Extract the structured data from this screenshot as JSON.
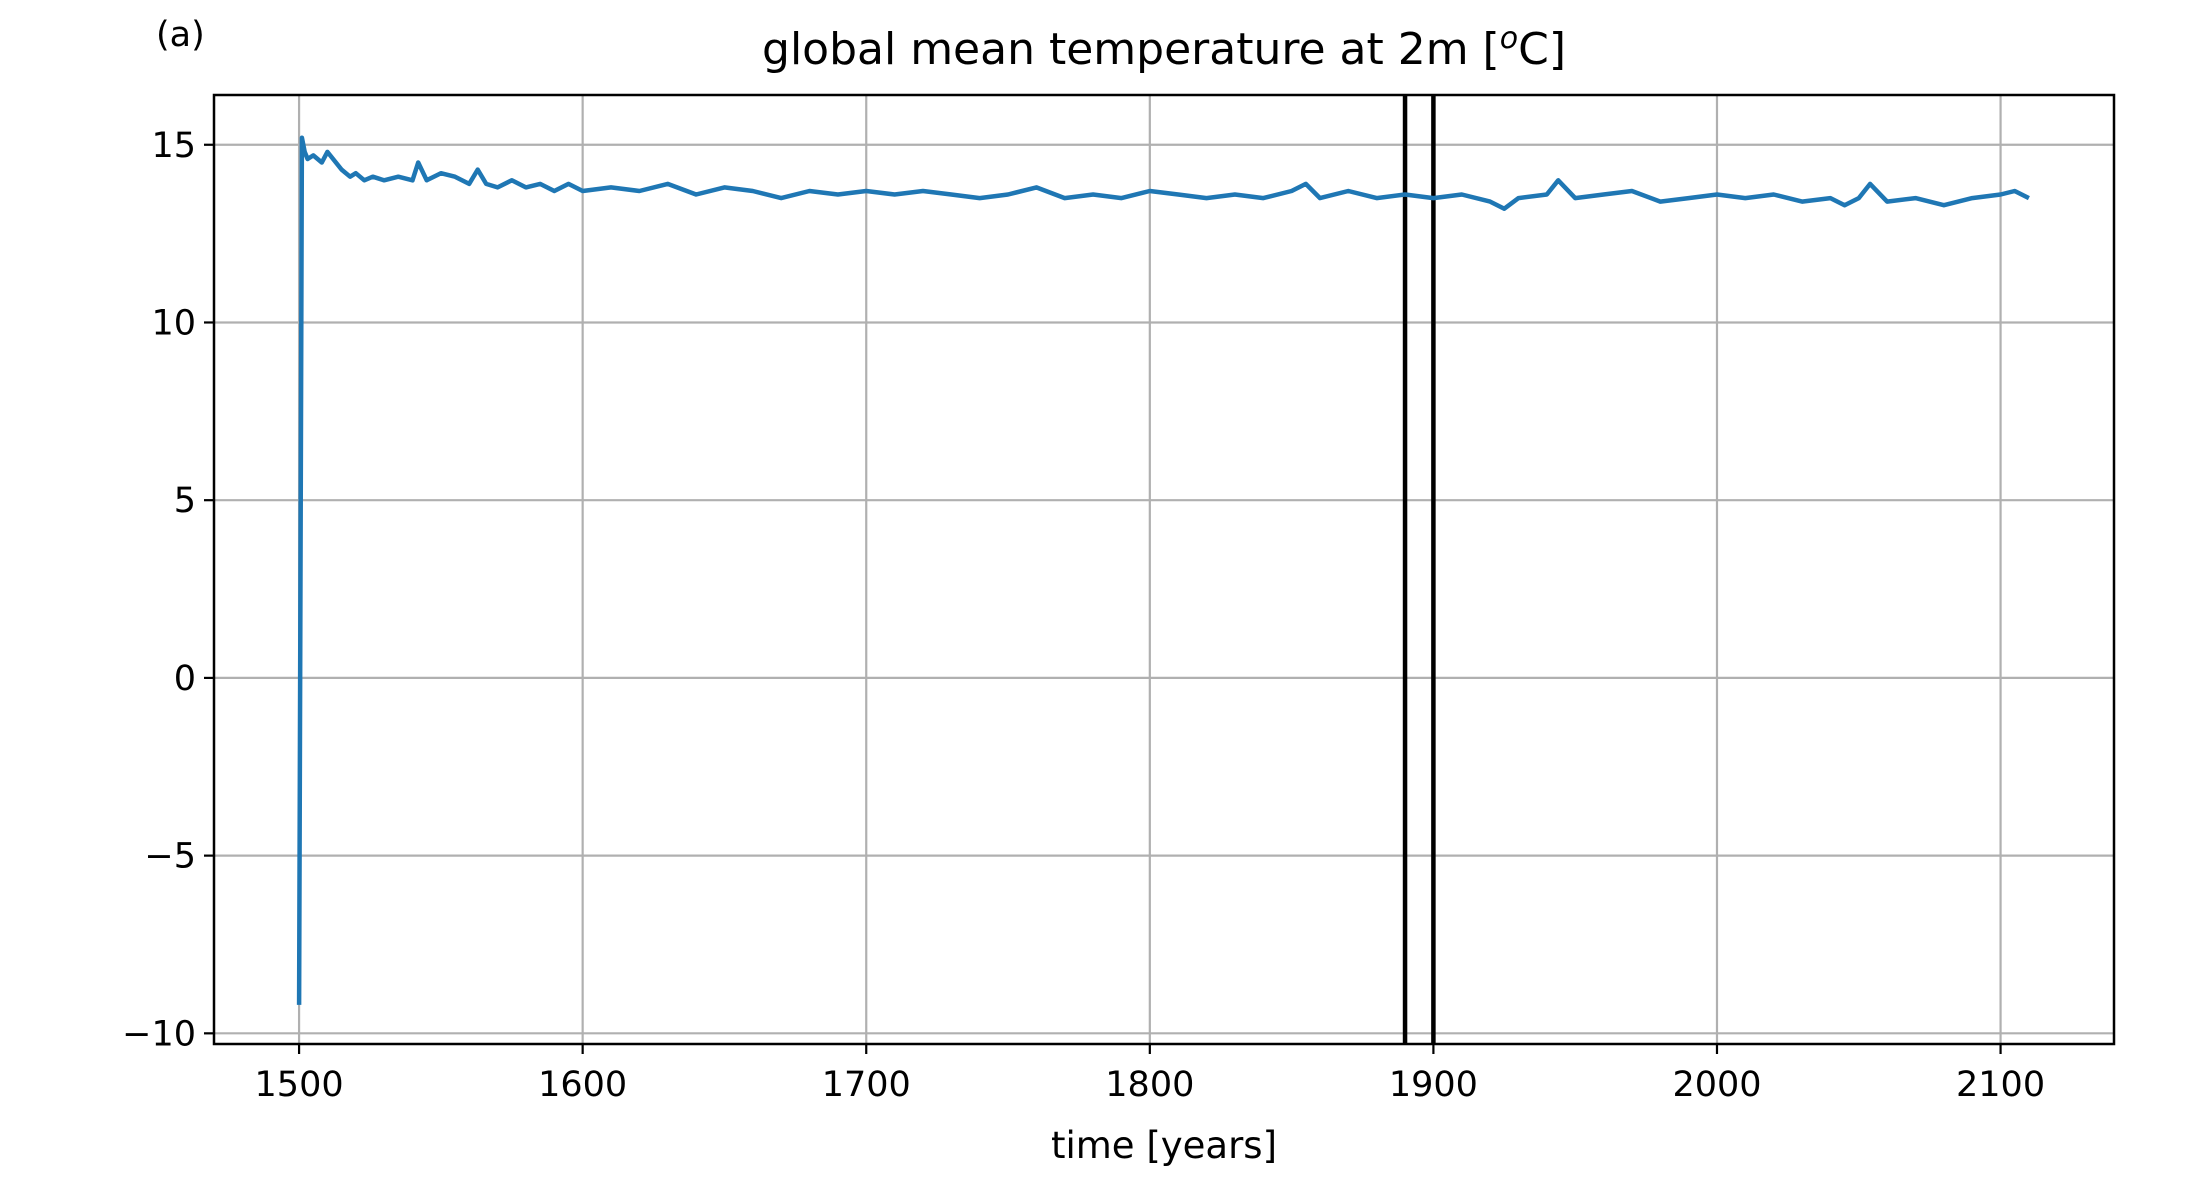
{
  "panel_label": "(a)",
  "chart_data": {
    "type": "line",
    "title": "global mean temperature at 2m [",
    "title_superscript": "o",
    "title_suffix": "C]",
    "xlabel": "time [years]",
    "ylabel": "",
    "xlim": [
      1470,
      2140
    ],
    "ylim": [
      -10.3,
      16.4
    ],
    "xticks": [
      1500,
      1600,
      1700,
      1800,
      1900,
      2000,
      2100
    ],
    "xtick_labels": [
      "1500",
      "1600",
      "1700",
      "1800",
      "1900",
      "2000",
      "2100"
    ],
    "yticks": [
      -10,
      -5,
      0,
      5,
      10,
      15
    ],
    "ytick_labels": [
      "−10",
      "−5",
      "0",
      "5",
      "10",
      "15"
    ],
    "grid": true,
    "series_color": "#1f77b4",
    "vertical_lines": [
      1890,
      1900
    ],
    "vertical_line_color": "#000000",
    "series": [
      {
        "x": [
          1500,
          1501,
          1502,
          1503,
          1505,
          1508,
          1510,
          1512,
          1515,
          1518,
          1520,
          1523,
          1526,
          1530,
          1535,
          1540,
          1542,
          1545,
          1550,
          1555,
          1560,
          1563,
          1566,
          1570,
          1575,
          1580,
          1585,
          1590,
          1595,
          1600,
          1610,
          1620,
          1630,
          1640,
          1650,
          1660,
          1670,
          1680,
          1690,
          1700,
          1710,
          1720,
          1730,
          1740,
          1750,
          1760,
          1770,
          1780,
          1790,
          1800,
          1810,
          1820,
          1830,
          1840,
          1850,
          1855,
          1860,
          1870,
          1880,
          1890,
          1900,
          1910,
          1920,
          1925,
          1930,
          1940,
          1944,
          1950,
          1960,
          1970,
          1980,
          1990,
          2000,
          2010,
          2020,
          2030,
          2040,
          2045,
          2050,
          2054,
          2060,
          2070,
          2080,
          2090,
          2100,
          2105,
          2110
        ],
        "y": [
          -9.2,
          15.2,
          14.8,
          14.6,
          14.7,
          14.5,
          14.8,
          14.6,
          14.3,
          14.1,
          14.2,
          14.0,
          14.1,
          14.0,
          14.1,
          14.0,
          14.5,
          14.0,
          14.2,
          14.1,
          13.9,
          14.3,
          13.9,
          13.8,
          14.0,
          13.8,
          13.9,
          13.7,
          13.9,
          13.7,
          13.8,
          13.7,
          13.9,
          13.6,
          13.8,
          13.7,
          13.5,
          13.7,
          13.6,
          13.7,
          13.6,
          13.7,
          13.6,
          13.5,
          13.6,
          13.8,
          13.5,
          13.6,
          13.5,
          13.7,
          13.6,
          13.5,
          13.6,
          13.5,
          13.7,
          13.9,
          13.5,
          13.7,
          13.5,
          13.6,
          13.5,
          13.6,
          13.4,
          13.2,
          13.5,
          13.6,
          14.0,
          13.5,
          13.6,
          13.7,
          13.4,
          13.5,
          13.6,
          13.5,
          13.6,
          13.4,
          13.5,
          13.3,
          13.5,
          13.9,
          13.4,
          13.5,
          13.3,
          13.5,
          13.6,
          13.7,
          13.5
        ]
      }
    ]
  }
}
